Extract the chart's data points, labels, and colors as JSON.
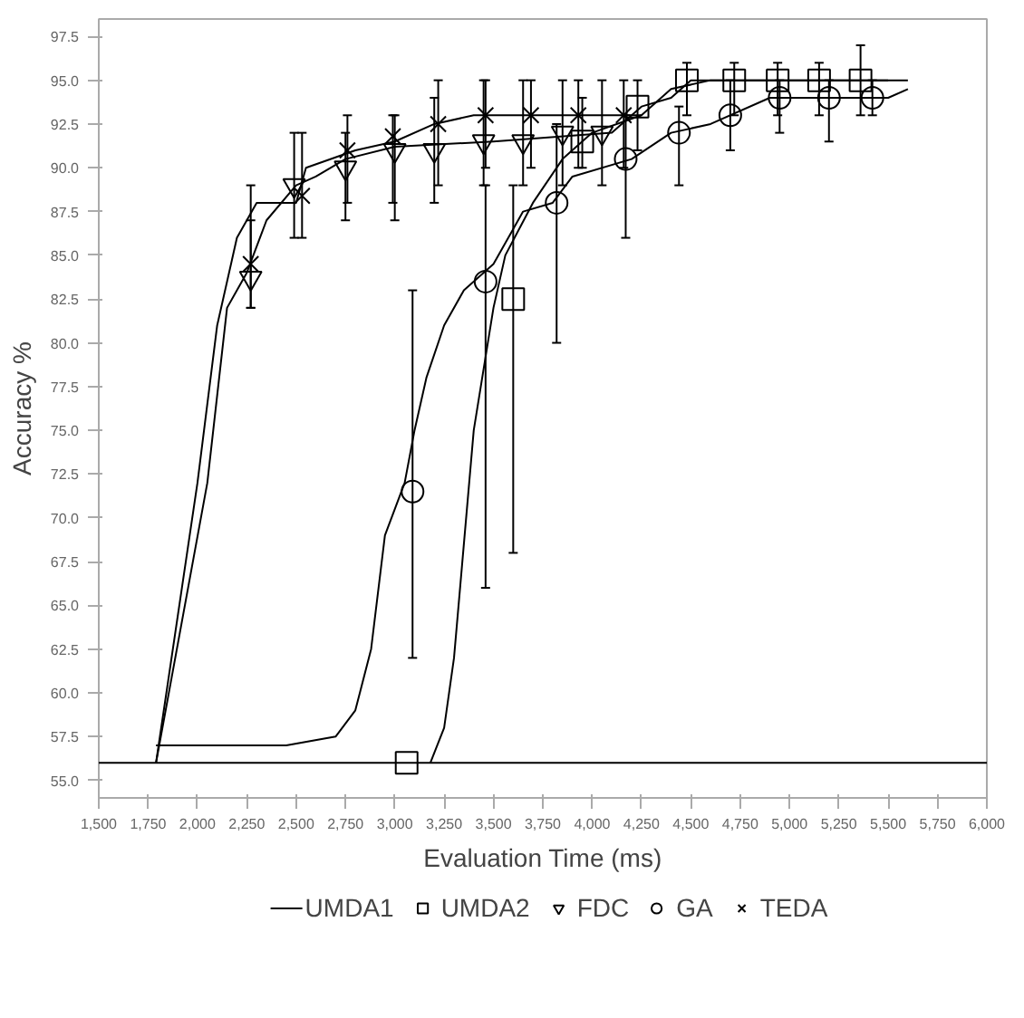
{
  "chart_data": {
    "type": "scatter",
    "xlabel": "Evaluation Time (ms)",
    "ylabel": "Accuracy %",
    "xlim": [
      1500,
      6000
    ],
    "ylim": [
      54,
      98.5
    ],
    "xticks": [
      {
        "value": 1500,
        "label": "1,500"
      },
      {
        "value": 1750,
        "label": "1,750"
      },
      {
        "value": 2000,
        "label": "2,000"
      },
      {
        "value": 2250,
        "label": "2,250"
      },
      {
        "value": 2500,
        "label": "2,500"
      },
      {
        "value": 2750,
        "label": "2,750"
      },
      {
        "value": 3000,
        "label": "3,000"
      },
      {
        "value": 3250,
        "label": "3,250"
      },
      {
        "value": 3500,
        "label": "3,500"
      },
      {
        "value": 3750,
        "label": "3,750"
      },
      {
        "value": 4000,
        "label": "4,000"
      },
      {
        "value": 4250,
        "label": "4,250"
      },
      {
        "value": 4500,
        "label": "4,500"
      },
      {
        "value": 4750,
        "label": "4,750"
      },
      {
        "value": 5000,
        "label": "5,000"
      },
      {
        "value": 5250,
        "label": "5,250"
      },
      {
        "value": 5500,
        "label": "5,500"
      },
      {
        "value": 5750,
        "label": "5,750"
      },
      {
        "value": 6000,
        "label": "6,000"
      }
    ],
    "yticks": [
      {
        "value": 55,
        "label": "55.0"
      },
      {
        "value": 57.5,
        "label": "57.5"
      },
      {
        "value": 60,
        "label": "60.0"
      },
      {
        "value": 62.5,
        "label": "62.5"
      },
      {
        "value": 65,
        "label": "65.0"
      },
      {
        "value": 67.5,
        "label": "67.5"
      },
      {
        "value": 70,
        "label": "70.0"
      },
      {
        "value": 72.5,
        "label": "72.5"
      },
      {
        "value": 75,
        "label": "75.0"
      },
      {
        "value": 77.5,
        "label": "77.5"
      },
      {
        "value": 80,
        "label": "80.0"
      },
      {
        "value": 82.5,
        "label": "82.5"
      },
      {
        "value": 85,
        "label": "85.0"
      },
      {
        "value": 87.5,
        "label": "87.5"
      },
      {
        "value": 90,
        "label": "90.0"
      },
      {
        "value": 92.5,
        "label": "92.5"
      },
      {
        "value": 95,
        "label": "95.0"
      },
      {
        "value": 97.5,
        "label": "97.5"
      }
    ],
    "grid": false,
    "legend": "bottom",
    "ref_lines": [
      {
        "axis": "y",
        "value": 56,
        "color": "#000000"
      }
    ],
    "series": [
      {
        "type": "line",
        "color": "#000000",
        "marker": "none",
        "x": [
          1790,
          2000,
          2100,
          2200,
          2300,
          2500,
          2550,
          2800,
          3000,
          3200,
          3400,
          4250
        ],
        "values": [
          56,
          72,
          81,
          86,
          88,
          88,
          90,
          91,
          91.5,
          92.5,
          93,
          93
        ]
      },
      {
        "type": "line",
        "name": "UMDA1",
        "color": "#000000",
        "marker": "none",
        "x": [
          1790,
          2050,
          2150,
          2250,
          2350,
          2500,
          2600,
          2750,
          3000,
          3500,
          4100,
          4250,
          4400,
          4500,
          5500
        ],
        "values": [
          56,
          72,
          82,
          84,
          87,
          89,
          89.5,
          90.5,
          91.2,
          91.5,
          92,
          93.5,
          94,
          95,
          95
        ]
      },
      {
        "type": "line",
        "color": "#000000",
        "marker": "none",
        "x": [
          1790,
          2450,
          2700,
          2800,
          2880,
          2950,
          3050,
          3100,
          3160,
          3250,
          3350,
          3500,
          3650,
          3800,
          3900,
          4200,
          4400,
          4600,
          4900,
          5500,
          5600
        ],
        "values": [
          57,
          57,
          57.5,
          59,
          62.5,
          69,
          72,
          75,
          78,
          81,
          83,
          84.5,
          87.5,
          88,
          89.5,
          90.5,
          92,
          92.5,
          94,
          94,
          94.5
        ]
      },
      {
        "type": "line",
        "color": "#000000",
        "marker": "none",
        "x": [
          3180,
          3250,
          3300,
          3400,
          3500,
          3560,
          3700,
          3850,
          4000,
          4250,
          4400,
          4600,
          5600
        ],
        "values": [
          56,
          58,
          62,
          75,
          82,
          85,
          88,
          90.5,
          92,
          93,
          94.5,
          95,
          95
        ]
      },
      {
        "name": "UMDA2",
        "color": "#000000",
        "marker": "square",
        "x": [
          3060,
          3600,
          3950,
          4230,
          4480,
          4720,
          4940,
          5150,
          5360
        ],
        "values": [
          56,
          82.5,
          91.5,
          93.5,
          95,
          95,
          95,
          95,
          95
        ],
        "errors": [
          null,
          [
            68,
            89
          ],
          [
            90,
            94
          ],
          [
            91,
            95
          ],
          [
            93,
            96
          ],
          [
            93,
            96
          ],
          [
            93,
            96
          ],
          [
            93,
            96
          ],
          [
            93,
            97
          ]
        ]
      },
      {
        "name": "FDC",
        "color": "#000000",
        "marker": "triangle",
        "x": [
          2270,
          2490,
          2750,
          3000,
          3200,
          3450,
          3650,
          3850,
          4050
        ],
        "values": [
          83.7,
          89,
          90,
          91,
          91,
          91.5,
          91.5,
          92,
          92
        ],
        "errors": [
          [
            82,
            87
          ],
          [
            86,
            92
          ],
          [
            87,
            92
          ],
          [
            87,
            93
          ],
          [
            88,
            94
          ],
          [
            89,
            95
          ],
          [
            89,
            95
          ],
          [
            89,
            95
          ],
          [
            89,
            95
          ]
        ]
      },
      {
        "name": "GA",
        "color": "#000000",
        "marker": "circle",
        "x": [
          3090,
          3460,
          3820,
          4170,
          4440,
          4700,
          4950,
          5200,
          5420
        ],
        "values": [
          71.5,
          83.5,
          88,
          90.5,
          92,
          93,
          94,
          94,
          94
        ],
        "errors": [
          [
            62,
            83
          ],
          [
            66,
            89
          ],
          [
            80,
            92.5
          ],
          [
            86,
            93
          ],
          [
            89,
            93.5
          ],
          [
            91,
            95
          ],
          [
            92,
            95
          ],
          [
            91.5,
            95
          ],
          [
            93,
            95
          ]
        ]
      },
      {
        "name": "TEDA",
        "color": "#000000",
        "marker": "cross",
        "x": [
          2270,
          2530,
          2760,
          2990,
          3220,
          3460,
          3690,
          3930,
          4160
        ],
        "values": [
          84.5,
          88.4,
          91,
          91.8,
          92.5,
          93,
          93,
          93,
          93
        ],
        "errors": [
          [
            82,
            89
          ],
          [
            86,
            92
          ],
          [
            88,
            93
          ],
          [
            88,
            93
          ],
          [
            89,
            95
          ],
          [
            90,
            95
          ],
          [
            90,
            95
          ],
          [
            90,
            95
          ],
          [
            90,
            95
          ]
        ]
      }
    ]
  }
}
